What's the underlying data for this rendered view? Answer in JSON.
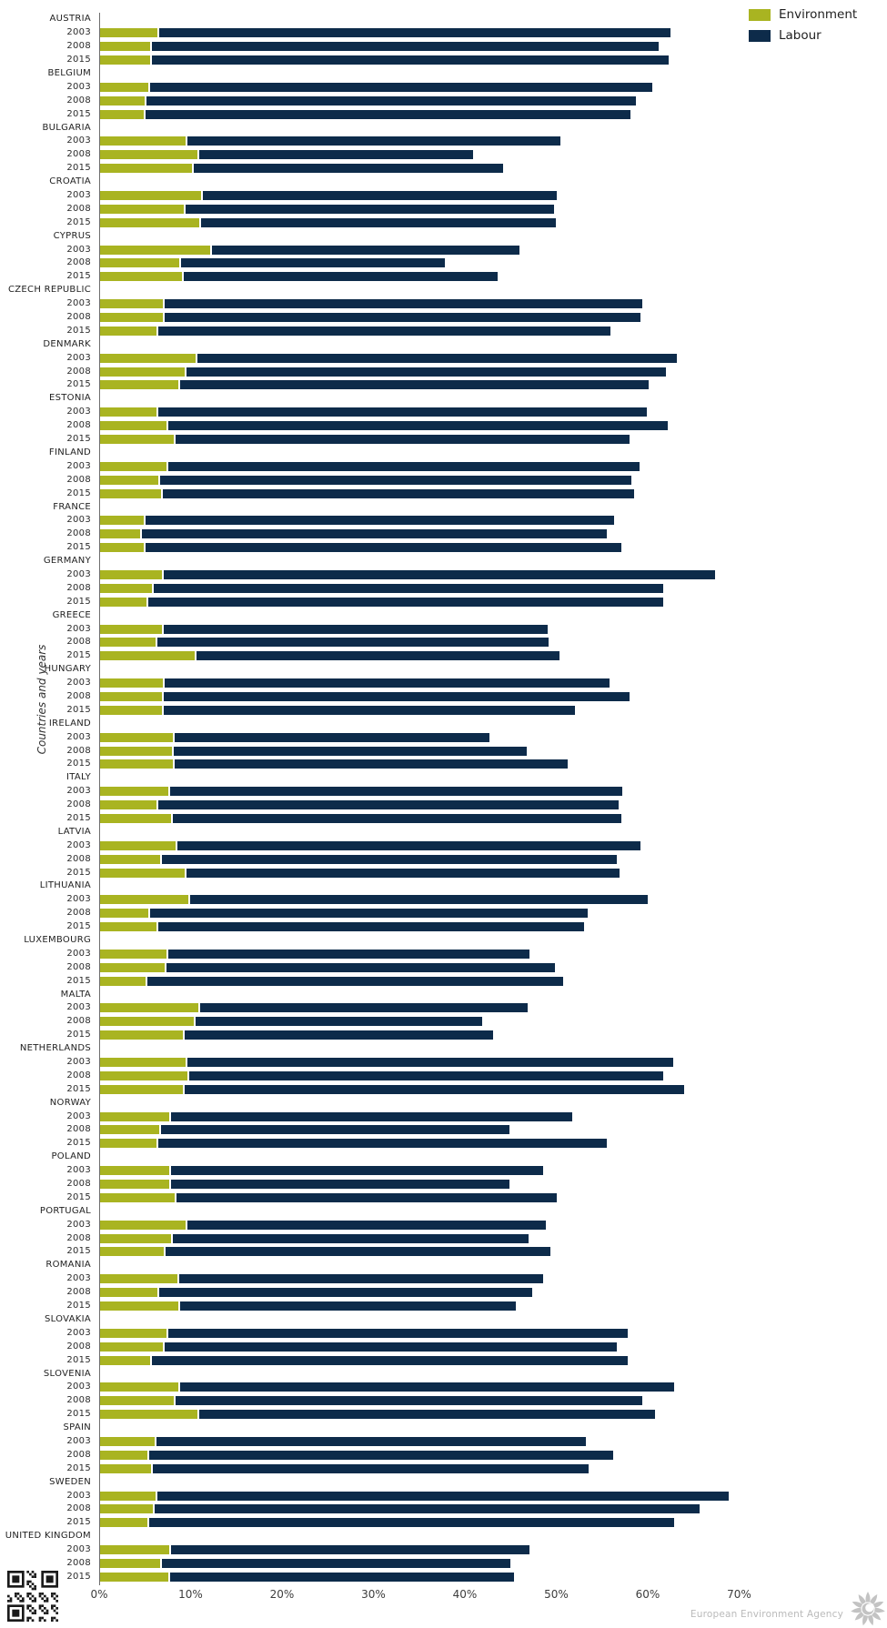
{
  "chart_data": {
    "type": "bar",
    "orientation": "horizontal",
    "stacked": true,
    "title": "",
    "xlabel": "",
    "ylabel": "Countries and years",
    "x_axis": {
      "unit": "%",
      "min": 0,
      "max": 70,
      "ticks": [
        "0%",
        "10%",
        "20%",
        "30%",
        "40%",
        "50%",
        "60%",
        "70%"
      ],
      "tick_values": [
        0,
        10,
        20,
        30,
        40,
        50,
        60,
        70
      ]
    },
    "grid": false,
    "legend_position": "top-right",
    "legend": [
      {
        "name": "Environment",
        "color": "#a9b421"
      },
      {
        "name": "Labour",
        "color": "#0d2b4a"
      }
    ],
    "years": [
      "2003",
      "2008",
      "2015"
    ],
    "series_note": "values are percent; stacked Environment + Labour",
    "countries": [
      {
        "name": "AUSTRIA",
        "bars": [
          {
            "year": "2003",
            "environment": 6.3,
            "labour": 55.9
          },
          {
            "year": "2008",
            "environment": 5.5,
            "labour": 55.4
          },
          {
            "year": "2015",
            "environment": 5.5,
            "labour": 56.5
          }
        ]
      },
      {
        "name": "BELGIUM",
        "bars": [
          {
            "year": "2003",
            "environment": 5.3,
            "labour": 54.9
          },
          {
            "year": "2008",
            "environment": 4.9,
            "labour": 53.5
          },
          {
            "year": "2015",
            "environment": 4.8,
            "labour": 53.0
          }
        ]
      },
      {
        "name": "BULGARIA",
        "bars": [
          {
            "year": "2003",
            "environment": 9.4,
            "labour": 40.7
          },
          {
            "year": "2008",
            "environment": 10.6,
            "labour": 30.0
          },
          {
            "year": "2015",
            "environment": 10.0,
            "labour": 33.9
          }
        ]
      },
      {
        "name": "CROATIA",
        "bars": [
          {
            "year": "2003",
            "environment": 11.0,
            "labour": 38.8
          },
          {
            "year": "2008",
            "environment": 9.2,
            "labour": 40.3
          },
          {
            "year": "2015",
            "environment": 10.8,
            "labour": 38.9
          }
        ]
      },
      {
        "name": "CYPRUS",
        "bars": [
          {
            "year": "2003",
            "environment": 12.0,
            "labour": 33.7
          },
          {
            "year": "2008",
            "environment": 8.7,
            "labour": 28.8
          },
          {
            "year": "2015",
            "environment": 9.0,
            "labour": 34.3
          }
        ]
      },
      {
        "name": "CZECH REPUBLIC",
        "bars": [
          {
            "year": "2003",
            "environment": 6.9,
            "labour": 52.2
          },
          {
            "year": "2008",
            "environment": 6.9,
            "labour": 52.0
          },
          {
            "year": "2015",
            "environment": 6.2,
            "labour": 49.4
          }
        ]
      },
      {
        "name": "DENMARK",
        "bars": [
          {
            "year": "2003",
            "environment": 10.4,
            "labour": 52.5
          },
          {
            "year": "2008",
            "environment": 9.3,
            "labour": 52.4
          },
          {
            "year": "2015",
            "environment": 8.6,
            "labour": 51.2
          }
        ]
      },
      {
        "name": "ESTONIA",
        "bars": [
          {
            "year": "2003",
            "environment": 6.2,
            "labour": 53.4
          },
          {
            "year": "2008",
            "environment": 7.3,
            "labour": 54.6
          },
          {
            "year": "2015",
            "environment": 8.1,
            "labour": 49.6
          }
        ]
      },
      {
        "name": "FINLAND",
        "bars": [
          {
            "year": "2003",
            "environment": 7.3,
            "labour": 51.5
          },
          {
            "year": "2008",
            "environment": 6.4,
            "labour": 51.5
          },
          {
            "year": "2015",
            "environment": 6.7,
            "labour": 51.5
          }
        ]
      },
      {
        "name": "FRANCE",
        "bars": [
          {
            "year": "2003",
            "environment": 4.8,
            "labour": 51.2
          },
          {
            "year": "2008",
            "environment": 4.4,
            "labour": 50.8
          },
          {
            "year": "2015",
            "environment": 4.8,
            "labour": 52.0
          }
        ]
      },
      {
        "name": "GERMANY",
        "bars": [
          {
            "year": "2003",
            "environment": 6.8,
            "labour": 60.3
          },
          {
            "year": "2008",
            "environment": 5.7,
            "labour": 55.7
          },
          {
            "year": "2015",
            "environment": 5.1,
            "labour": 56.3
          }
        ]
      },
      {
        "name": "GREECE",
        "bars": [
          {
            "year": "2003",
            "environment": 6.8,
            "labour": 42.0
          },
          {
            "year": "2008",
            "environment": 6.1,
            "labour": 42.8
          },
          {
            "year": "2015",
            "environment": 10.3,
            "labour": 39.8
          }
        ]
      },
      {
        "name": "HUNGARY",
        "bars": [
          {
            "year": "2003",
            "environment": 6.9,
            "labour": 48.6
          },
          {
            "year": "2008",
            "environment": 6.8,
            "labour": 50.9
          },
          {
            "year": "2015",
            "environment": 6.8,
            "labour": 44.9
          }
        ]
      },
      {
        "name": "IRELAND",
        "bars": [
          {
            "year": "2003",
            "environment": 8.0,
            "labour": 34.4
          },
          {
            "year": "2008",
            "environment": 7.9,
            "labour": 38.6
          },
          {
            "year": "2015",
            "environment": 8.0,
            "labour": 42.9
          }
        ]
      },
      {
        "name": "ITALY",
        "bars": [
          {
            "year": "2003",
            "environment": 7.5,
            "labour": 49.4
          },
          {
            "year": "2008",
            "environment": 6.2,
            "labour": 50.3
          },
          {
            "year": "2015",
            "environment": 7.8,
            "labour": 49.0
          }
        ]
      },
      {
        "name": "LATVIA",
        "bars": [
          {
            "year": "2003",
            "environment": 8.3,
            "labour": 50.6
          },
          {
            "year": "2008",
            "environment": 6.6,
            "labour": 49.7
          },
          {
            "year": "2015",
            "environment": 9.3,
            "labour": 47.3
          }
        ]
      },
      {
        "name": "LITHUANIA",
        "bars": [
          {
            "year": "2003",
            "environment": 9.7,
            "labour": 50.0
          },
          {
            "year": "2008",
            "environment": 5.3,
            "labour": 47.8
          },
          {
            "year": "2015",
            "environment": 6.2,
            "labour": 46.5
          }
        ]
      },
      {
        "name": "LUXEMBOURG",
        "bars": [
          {
            "year": "2003",
            "environment": 7.3,
            "labour": 39.5
          },
          {
            "year": "2008",
            "environment": 7.1,
            "labour": 42.5
          },
          {
            "year": "2015",
            "environment": 5.0,
            "labour": 45.4
          }
        ]
      },
      {
        "name": "MALTA",
        "bars": [
          {
            "year": "2003",
            "environment": 10.7,
            "labour": 35.9
          },
          {
            "year": "2008",
            "environment": 10.2,
            "labour": 31.4
          },
          {
            "year": "2015",
            "environment": 9.1,
            "labour": 33.7
          }
        ]
      },
      {
        "name": "NETHERLANDS",
        "bars": [
          {
            "year": "2003",
            "environment": 9.4,
            "labour": 53.1
          },
          {
            "year": "2008",
            "environment": 9.6,
            "labour": 51.8
          },
          {
            "year": "2015",
            "environment": 9.1,
            "labour": 54.6
          }
        ]
      },
      {
        "name": "NORWAY",
        "bars": [
          {
            "year": "2003",
            "environment": 7.6,
            "labour": 43.8
          },
          {
            "year": "2008",
            "environment": 6.5,
            "labour": 38.1
          },
          {
            "year": "2015",
            "environment": 6.2,
            "labour": 49.0
          }
        ]
      },
      {
        "name": "POLAND",
        "bars": [
          {
            "year": "2003",
            "environment": 7.6,
            "labour": 40.7
          },
          {
            "year": "2008",
            "environment": 7.6,
            "labour": 37.0
          },
          {
            "year": "2015",
            "environment": 8.2,
            "labour": 41.6
          }
        ]
      },
      {
        "name": "PORTUGAL",
        "bars": [
          {
            "year": "2003",
            "environment": 9.4,
            "labour": 39.2
          },
          {
            "year": "2008",
            "environment": 7.8,
            "labour": 38.9
          },
          {
            "year": "2015",
            "environment": 7.0,
            "labour": 42.1
          }
        ]
      },
      {
        "name": "ROMANIA",
        "bars": [
          {
            "year": "2003",
            "environment": 8.5,
            "labour": 39.8
          },
          {
            "year": "2008",
            "environment": 6.3,
            "labour": 40.8
          },
          {
            "year": "2015",
            "environment": 8.6,
            "labour": 36.7
          }
        ]
      },
      {
        "name": "SLOVAKIA",
        "bars": [
          {
            "year": "2003",
            "environment": 7.3,
            "labour": 50.2
          },
          {
            "year": "2008",
            "environment": 6.9,
            "labour": 49.4
          },
          {
            "year": "2015",
            "environment": 5.5,
            "labour": 52.0
          }
        ]
      },
      {
        "name": "SLOVENIA",
        "bars": [
          {
            "year": "2003",
            "environment": 8.6,
            "labour": 54.0
          },
          {
            "year": "2008",
            "environment": 8.1,
            "labour": 51.0
          },
          {
            "year": "2015",
            "environment": 10.6,
            "labour": 49.9
          }
        ]
      },
      {
        "name": "SPAIN",
        "bars": [
          {
            "year": "2003",
            "environment": 6.0,
            "labour": 46.9
          },
          {
            "year": "2008",
            "environment": 5.2,
            "labour": 50.7
          },
          {
            "year": "2015",
            "environment": 5.6,
            "labour": 47.6
          }
        ]
      },
      {
        "name": "SWEDEN",
        "bars": [
          {
            "year": "2003",
            "environment": 6.1,
            "labour": 62.5
          },
          {
            "year": "2008",
            "environment": 5.8,
            "labour": 59.6
          },
          {
            "year": "2015",
            "environment": 5.2,
            "labour": 57.4
          }
        ]
      },
      {
        "name": "UNITED KINGDOM",
        "bars": [
          {
            "year": "2003",
            "environment": 7.6,
            "labour": 39.2
          },
          {
            "year": "2008",
            "environment": 6.6,
            "labour": 38.1
          },
          {
            "year": "2015",
            "environment": 7.5,
            "labour": 37.6
          }
        ]
      }
    ]
  },
  "footer": {
    "agency_name": "European Environment Agency"
  }
}
